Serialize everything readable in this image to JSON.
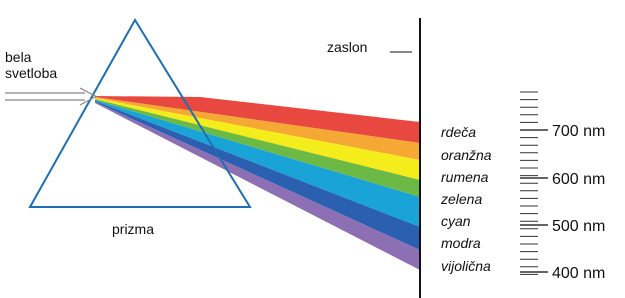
{
  "light": {
    "line1": "bela",
    "line2": "svetloba"
  },
  "screen": {
    "label": "zaslon"
  },
  "prism": {
    "label": "prizma"
  },
  "colors": [
    "rdeča",
    "oranžna",
    "rumena",
    "zelena",
    "cyan",
    "modra",
    "vijolična"
  ],
  "wavelengths": [
    "700 nm",
    "600 nm",
    "500 nm",
    "400 nm"
  ]
}
